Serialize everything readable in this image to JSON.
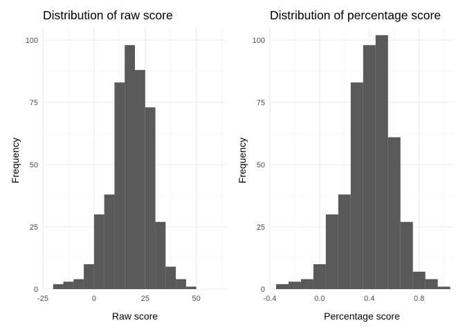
{
  "chart_data": [
    {
      "type": "histogram",
      "title": "Distribution of raw score",
      "xlabel": "Raw score",
      "ylabel": "Frequency",
      "xlim": [
        -25,
        65
      ],
      "ylim": [
        0,
        105
      ],
      "x_ticks": [
        -25,
        0,
        25,
        50
      ],
      "y_ticks": [
        0,
        25,
        50,
        75,
        100
      ],
      "bar_color": "#595959",
      "grid": true,
      "bin_width": 5,
      "bins": [
        {
          "start": -20,
          "end": -15,
          "count": 2
        },
        {
          "start": -15,
          "end": -10,
          "count": 3
        },
        {
          "start": -10,
          "end": -5,
          "count": 4
        },
        {
          "start": -5,
          "end": 0,
          "count": 10
        },
        {
          "start": 0,
          "end": 5,
          "count": 30
        },
        {
          "start": 5,
          "end": 10,
          "count": 38
        },
        {
          "start": 10,
          "end": 15,
          "count": 83
        },
        {
          "start": 15,
          "end": 20,
          "count": 98
        },
        {
          "start": 20,
          "end": 25,
          "count": 88
        },
        {
          "start": 25,
          "end": 30,
          "count": 73
        },
        {
          "start": 30,
          "end": 35,
          "count": 27
        },
        {
          "start": 35,
          "end": 40,
          "count": 9
        },
        {
          "start": 40,
          "end": 45,
          "count": 4
        },
        {
          "start": 45,
          "end": 50,
          "count": 1
        }
      ]
    },
    {
      "type": "histogram",
      "title": "Distribution of percentage score",
      "xlabel": "Percentage score",
      "ylabel": "Frequency",
      "xlim": [
        -0.4,
        1.08
      ],
      "ylim": [
        0,
        105
      ],
      "x_ticks": [
        -0.4,
        0.0,
        0.4,
        0.8
      ],
      "y_ticks": [
        0,
        25,
        50,
        75,
        100
      ],
      "bar_color": "#595959",
      "grid": true,
      "bin_width": 0.1,
      "bins": [
        {
          "start": -0.35,
          "end": -0.25,
          "count": 2
        },
        {
          "start": -0.25,
          "end": -0.15,
          "count": 3
        },
        {
          "start": -0.15,
          "end": -0.05,
          "count": 4
        },
        {
          "start": -0.05,
          "end": 0.05,
          "count": 10
        },
        {
          "start": 0.05,
          "end": 0.15,
          "count": 30
        },
        {
          "start": 0.15,
          "end": 0.25,
          "count": 38
        },
        {
          "start": 0.25,
          "end": 0.35,
          "count": 83
        },
        {
          "start": 0.35,
          "end": 0.45,
          "count": 98
        },
        {
          "start": 0.45,
          "end": 0.55,
          "count": 102
        },
        {
          "start": 0.55,
          "end": 0.65,
          "count": 61
        },
        {
          "start": 0.65,
          "end": 0.75,
          "count": 27
        },
        {
          "start": 0.75,
          "end": 0.85,
          "count": 7
        },
        {
          "start": 0.85,
          "end": 0.95,
          "count": 4
        },
        {
          "start": 0.95,
          "end": 1.05,
          "count": 1
        }
      ]
    }
  ]
}
